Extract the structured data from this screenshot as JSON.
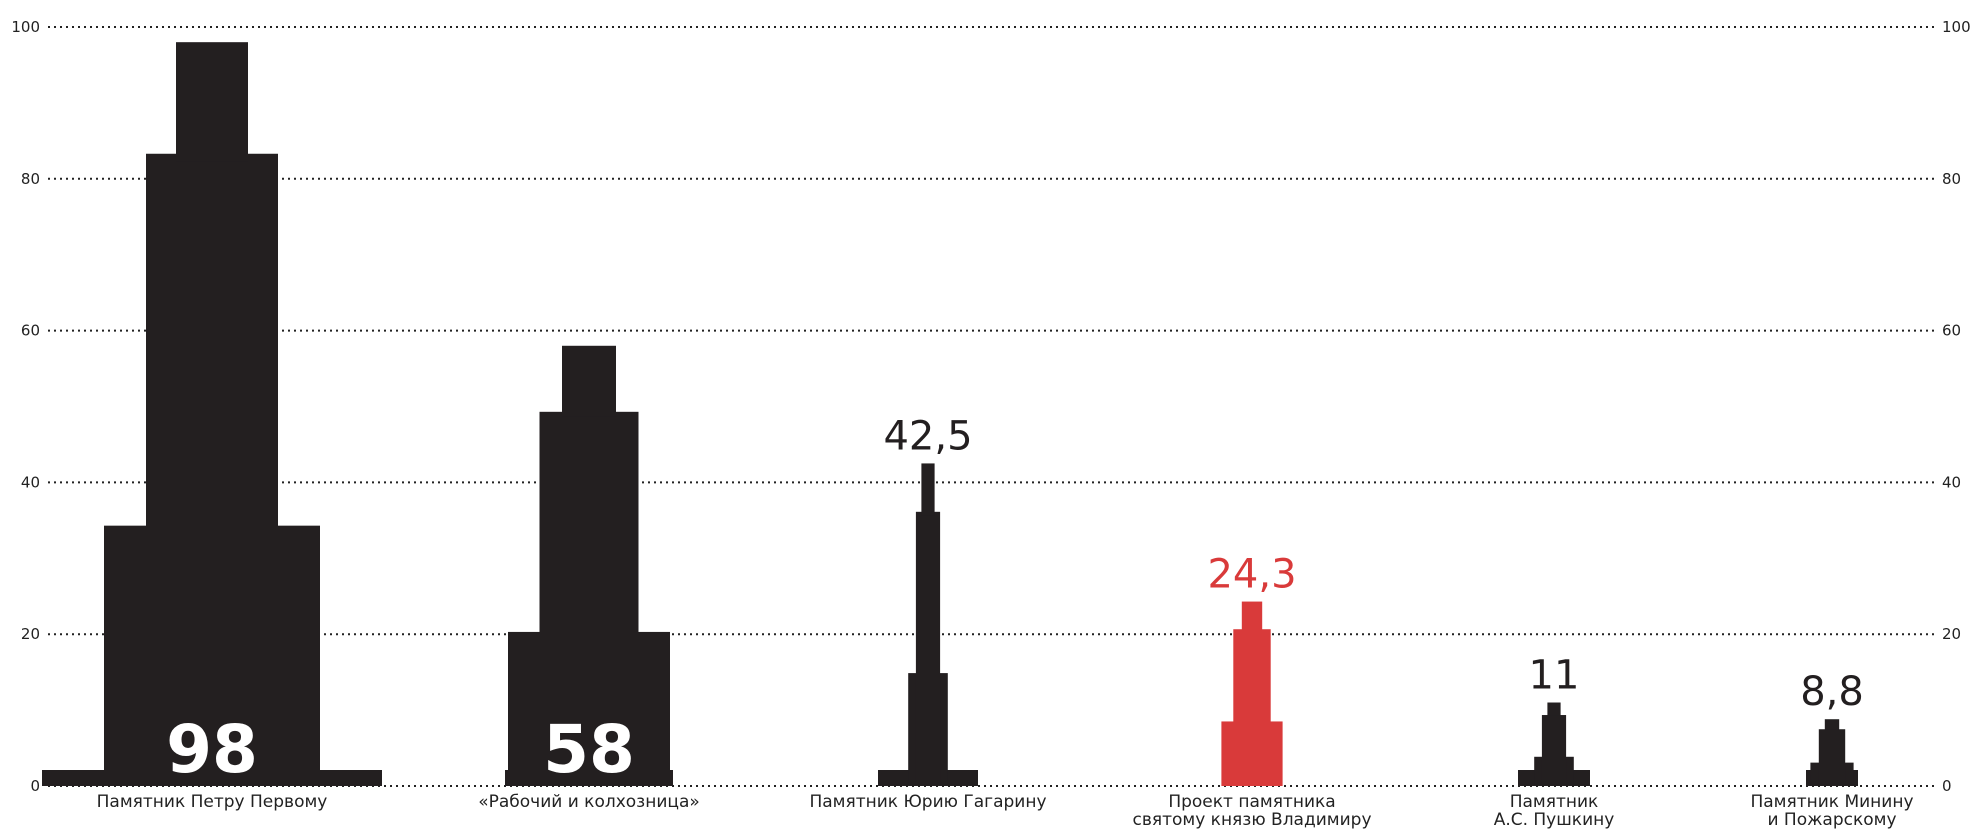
{
  "chart_data": {
    "type": "bar",
    "ylim": [
      0,
      100
    ],
    "yticks": [
      0,
      20,
      40,
      60,
      80,
      100
    ],
    "grid": true,
    "highlight_color": "#d93a3a",
    "default_color": "#231f20",
    "categories": [
      {
        "label_lines": [
          "Памятник Петру Первому"
        ],
        "value": 98,
        "value_label": "98",
        "highlight": false,
        "label_inside": true,
        "icon": "peter-monument-silhouette"
      },
      {
        "label_lines": [
          "«Рабочий и колхозница»"
        ],
        "value": 58,
        "value_label": "58",
        "highlight": false,
        "label_inside": true,
        "icon": "worker-and-kolkhoz-woman-silhouette"
      },
      {
        "label_lines": [
          "Памятник Юрию Гагарину"
        ],
        "value": 42.5,
        "value_label": "42,5",
        "highlight": false,
        "label_inside": false,
        "icon": "gagarin-monument-silhouette"
      },
      {
        "label_lines": [
          "Проект памятника",
          "святому князю Владимиру"
        ],
        "value": 24.3,
        "value_label": "24,3",
        "highlight": true,
        "label_inside": false,
        "icon": "prince-vladimir-monument-silhouette"
      },
      {
        "label_lines": [
          "Памятник",
          "А.С. Пушкину"
        ],
        "value": 11,
        "value_label": "11",
        "highlight": false,
        "label_inside": false,
        "icon": "pushkin-monument-silhouette"
      },
      {
        "label_lines": [
          "Памятник Минину",
          "и Пожарскому"
        ],
        "value": 8.8,
        "value_label": "8,8",
        "highlight": false,
        "label_inside": false,
        "icon": "minin-pozharsky-monument-silhouette"
      }
    ]
  }
}
